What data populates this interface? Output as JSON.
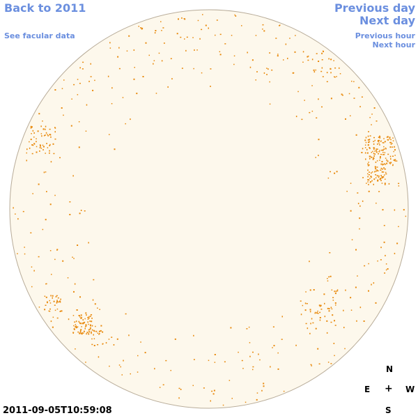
{
  "nav": {
    "back_label": "Back to 2011",
    "facular_label": "See facular data",
    "prev_day_label": "Previous day",
    "next_day_label": "Next day",
    "prev_hour_label": "Previous hour",
    "next_hour_label": "Next hour"
  },
  "compass": {
    "north": "N",
    "east": "E",
    "center": "+",
    "west": "W",
    "south": "S"
  },
  "timestamp": "2011-09-05T10:59:08",
  "colors": {
    "link": "#6b8fdf",
    "disk_fill": "#fdf8ec",
    "disk_border": "#b8ac99",
    "facula": "#e8890c"
  }
}
